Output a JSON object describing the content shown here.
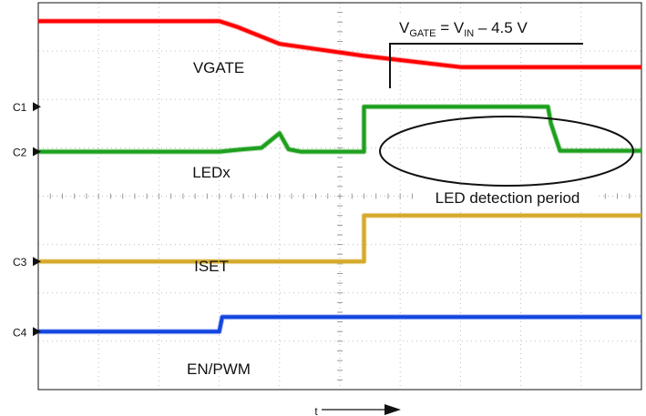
{
  "chart_data": {
    "type": "line",
    "title": "",
    "xlabel": "t",
    "ylabel": "",
    "grid": true,
    "x_divisions": 10,
    "y_divisions": 8,
    "x_range": [
      0,
      10
    ],
    "y_range": [
      0,
      8
    ],
    "channel_markers": [
      {
        "label": "C1",
        "level": 5.85
      },
      {
        "label": "C2",
        "level": 4.92
      },
      {
        "label": "C3",
        "level": 2.65
      },
      {
        "label": "C4",
        "level": 1.2
      }
    ],
    "series": [
      {
        "name": "VGATE",
        "color": "#ff0000",
        "x": [
          0,
          3.0,
          3.3,
          4.0,
          5.4,
          7.0,
          10.0
        ],
        "y": [
          7.62,
          7.62,
          7.5,
          7.15,
          6.9,
          6.67,
          6.67
        ]
      },
      {
        "name": "LEDx",
        "color": "#1ea01e",
        "x": [
          0,
          3.0,
          3.4,
          3.7,
          4.0,
          4.15,
          4.35,
          5.4,
          5.4,
          8.45,
          8.5,
          8.65,
          10.0
        ],
        "y": [
          4.92,
          4.92,
          4.97,
          5.0,
          5.3,
          4.97,
          4.92,
          4.92,
          5.85,
          5.85,
          5.5,
          4.94,
          4.94
        ]
      },
      {
        "name": "ISET",
        "color": "#d4aa2a",
        "x": [
          0,
          5.4,
          5.4,
          10.0
        ],
        "y": [
          2.65,
          2.65,
          3.6,
          3.6
        ]
      },
      {
        "name": "EN/PWM",
        "color": "#1346e0",
        "x": [
          0,
          3.0,
          3.05,
          10.0
        ],
        "y": [
          1.2,
          1.2,
          1.5,
          1.5
        ]
      }
    ],
    "annotations": [
      {
        "id": "vgate_eq",
        "text_main": "V",
        "sub1": "GATE",
        "text_mid": " = V",
        "sub2": "IN",
        "text_end": " – 4.5 V"
      },
      {
        "id": "led_detection",
        "text": "LED detection period"
      },
      {
        "id": "label_vgate",
        "text": "VGATE"
      },
      {
        "id": "label_ledx",
        "text": "LEDx"
      },
      {
        "id": "label_iset",
        "text": "ISET"
      },
      {
        "id": "label_enpwm",
        "text": "EN/PWM"
      }
    ]
  }
}
